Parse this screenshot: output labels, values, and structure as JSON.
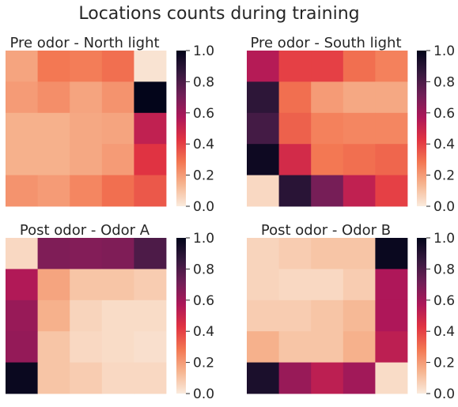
{
  "suptitle": "Locations counts during training",
  "colormap": {
    "name": "rocket_r",
    "stops": [
      "#faebdd",
      "#f6b48f",
      "#f37651",
      "#e13342",
      "#ad1759",
      "#701f57",
      "#35193e",
      "#03051a"
    ],
    "ticks": [
      "0.0",
      "0.2",
      "0.4",
      "0.6",
      "0.8",
      "1.0"
    ]
  },
  "chart_data": [
    {
      "type": "heatmap",
      "title": "Pre odor - North light",
      "xlabel": "",
      "ylabel": "",
      "vmin": 0,
      "vmax": 1,
      "values": [
        [
          0.18,
          0.28,
          0.27,
          0.3,
          0.02
        ],
        [
          0.2,
          0.23,
          0.18,
          0.22,
          1.0
        ],
        [
          0.15,
          0.15,
          0.17,
          0.18,
          0.52
        ],
        [
          0.15,
          0.15,
          0.17,
          0.2,
          0.43
        ],
        [
          0.22,
          0.2,
          0.25,
          0.3,
          0.35
        ]
      ]
    },
    {
      "type": "heatmap",
      "title": "Pre odor - South light",
      "xlabel": "",
      "ylabel": "",
      "vmin": 0,
      "vmax": 1,
      "values": [
        [
          0.55,
          0.4,
          0.4,
          0.3,
          0.26
        ],
        [
          0.88,
          0.3,
          0.2,
          0.17,
          0.17
        ],
        [
          0.82,
          0.33,
          0.26,
          0.25,
          0.25
        ],
        [
          0.97,
          0.47,
          0.28,
          0.3,
          0.32
        ],
        [
          0.05,
          0.89,
          0.7,
          0.52,
          0.4
        ]
      ]
    },
    {
      "type": "heatmap",
      "title": "Post odor - Odor A",
      "xlabel": "",
      "ylabel": "",
      "vmin": 0,
      "vmax": 1,
      "values": [
        [
          0.05,
          0.68,
          0.67,
          0.68,
          0.8
        ],
        [
          0.56,
          0.18,
          0.1,
          0.1,
          0.08
        ],
        [
          0.62,
          0.15,
          0.06,
          0.04,
          0.04
        ],
        [
          0.63,
          0.1,
          0.05,
          0.04,
          0.03
        ],
        [
          0.98,
          0.1,
          0.08,
          0.05,
          0.05
        ]
      ]
    },
    {
      "type": "heatmap",
      "title": "Post odor - Odor B",
      "xlabel": "",
      "ylabel": "",
      "vmin": 0,
      "vmax": 1,
      "values": [
        [
          0.06,
          0.08,
          0.1,
          0.1,
          0.98
        ],
        [
          0.06,
          0.05,
          0.05,
          0.08,
          0.57
        ],
        [
          0.08,
          0.08,
          0.1,
          0.13,
          0.57
        ],
        [
          0.15,
          0.1,
          0.1,
          0.15,
          0.53
        ],
        [
          0.93,
          0.62,
          0.53,
          0.6,
          0.04
        ]
      ]
    }
  ]
}
